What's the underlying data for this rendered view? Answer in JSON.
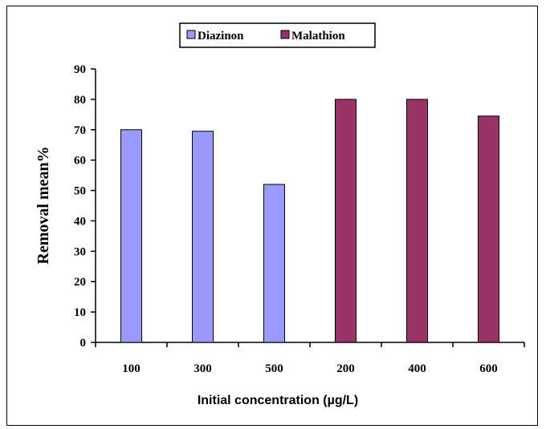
{
  "chart_data": {
    "type": "bar",
    "categories": [
      "100",
      "300",
      "500",
      "200",
      "400",
      "600"
    ],
    "series": [
      {
        "name": "Diazinon",
        "color": "#9999ff",
        "values": [
          70,
          69.5,
          52,
          null,
          null,
          null
        ]
      },
      {
        "name": "Malathion",
        "color": "#993366",
        "values": [
          null,
          null,
          null,
          80,
          80,
          74.5
        ]
      }
    ],
    "title": "",
    "xlabel": "Initial concentration (µg/L)",
    "ylabel": "Removal mean%",
    "ylim": [
      0,
      90
    ],
    "yticks": [
      "0",
      "10",
      "20",
      "30",
      "40",
      "50",
      "60",
      "70",
      "80",
      "90"
    ],
    "grid": false,
    "legend_position": "top-center"
  }
}
